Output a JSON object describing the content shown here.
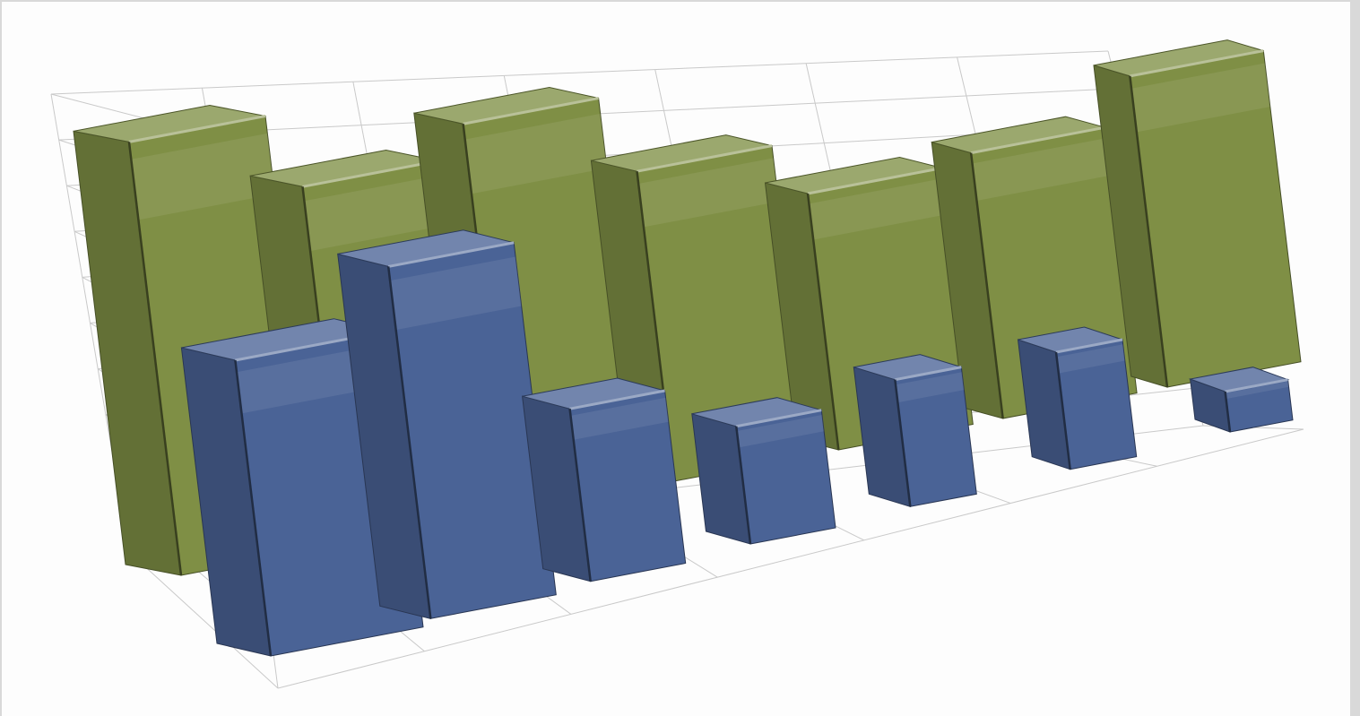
{
  "chart_data": {
    "type": "bar",
    "variant": "3d-column",
    "title": "",
    "xlabel": "",
    "ylabel": "",
    "categories": [
      "",
      "",
      "",
      "",
      "",
      "",
      ""
    ],
    "ylim": [
      0,
      10
    ],
    "grid": true,
    "legend": "none",
    "series": [
      {
        "row": "back",
        "color": "#7f8f45",
        "values": [
          9.3,
          8.0,
          9.1,
          7.6,
          6.6,
          7.2,
          8.9
        ]
      },
      {
        "row": "front",
        "color": "#4a6396",
        "values": [
          6.6,
          8.2,
          4.2,
          3.0,
          3.4,
          3.3,
          1.2
        ]
      }
    ]
  }
}
